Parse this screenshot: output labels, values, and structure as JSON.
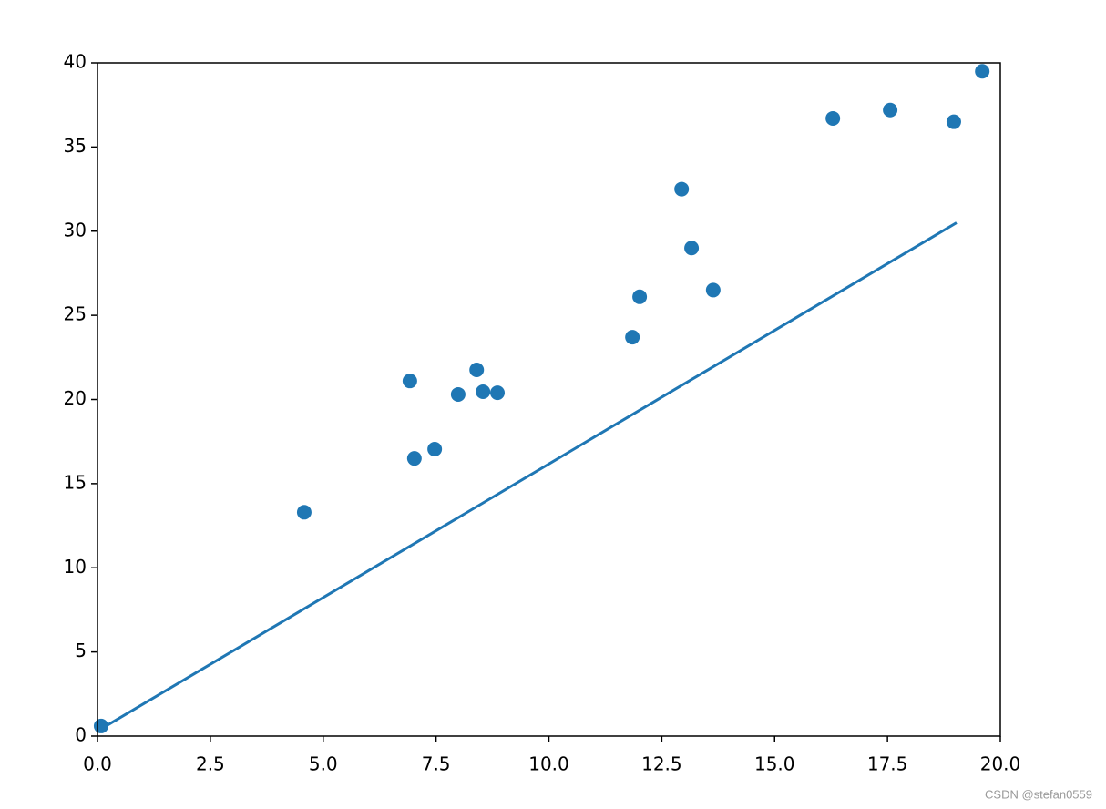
{
  "chart_data": {
    "type": "scatter",
    "series": [
      {
        "type": "line",
        "color": "#1f77b4",
        "x": [
          0,
          19.03
        ],
        "values": [
          0.3,
          30.5
        ]
      },
      {
        "type": "scatter",
        "color": "#1f77b4",
        "x": [
          0.08,
          4.58,
          6.92,
          7.02,
          7.47,
          7.99,
          8.4,
          8.54,
          8.86,
          11.85,
          12.01,
          12.94,
          13.16,
          13.64,
          16.29,
          17.56,
          18.97,
          19.6
        ],
        "values": [
          0.6,
          13.3,
          21.1,
          16.5,
          17.05,
          20.3,
          21.76,
          20.46,
          20.4,
          23.7,
          26.1,
          32.5,
          29.0,
          26.5,
          36.7,
          37.2,
          36.5,
          39.5
        ]
      }
    ],
    "xlim": [
      0,
      20
    ],
    "xticks": [
      {
        "value": 0,
        "label": "0.0"
      },
      2.5,
      {
        "value": 5,
        "label": "5.0"
      },
      7.5,
      {
        "value": 10,
        "label": "10.0"
      },
      12.5,
      {
        "value": 15,
        "label": "15.0"
      },
      17.5,
      {
        "value": 20,
        "label": "20.0"
      }
    ],
    "ylim": [
      0,
      40
    ],
    "yticks": [
      0,
      5,
      10,
      15,
      20,
      25,
      30,
      35,
      40
    ],
    "watermark": "CSDN @stefan0559"
  }
}
